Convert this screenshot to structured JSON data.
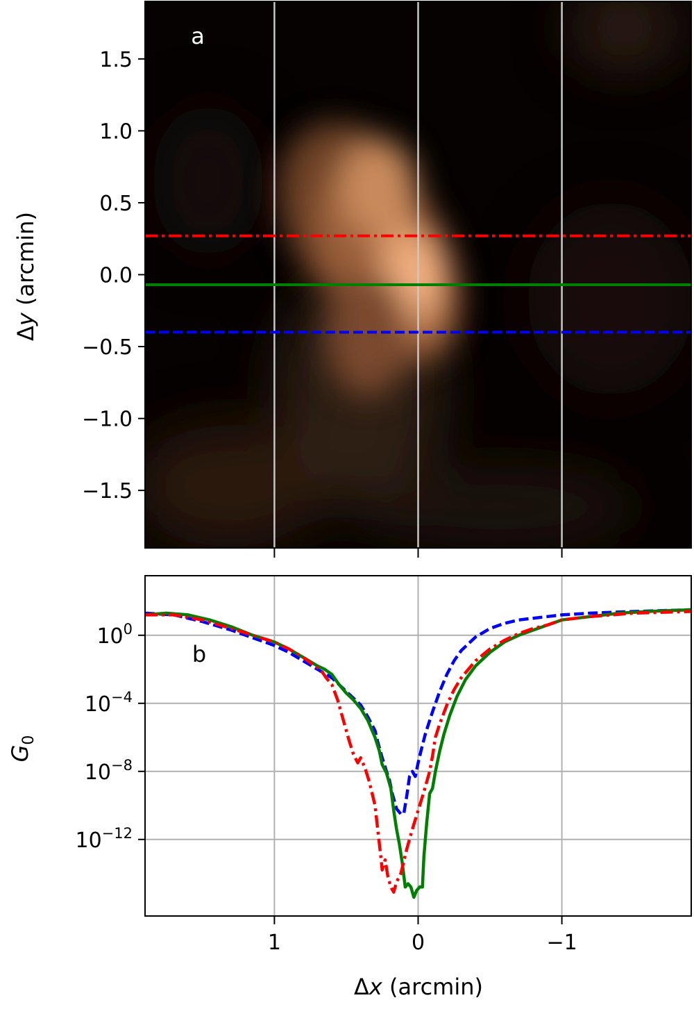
{
  "figure": {
    "background": "#ffffff",
    "grid_color": "#b0b0b0"
  },
  "chart_data": [
    {
      "type": "heatmap",
      "panel_label": "a",
      "panel_label_color": "#ffffff",
      "xlabel": "",
      "ylabel": "Δy (arcmin)",
      "ylabel_parts": {
        "sym": "Δ",
        "var": "y",
        "unit": " (arcmin)"
      },
      "xlim": [
        1.9,
        -1.9
      ],
      "ylim": [
        -1.9,
        1.9
      ],
      "yticks": [
        -1.5,
        -1.0,
        -0.5,
        0.0,
        0.5,
        1.0,
        1.5
      ],
      "ytick_labels": [
        "−1.5",
        "−1.0",
        "−0.5",
        "0.0",
        "0.5",
        "1.0",
        "1.5"
      ],
      "xticks": [
        1,
        0,
        -1
      ],
      "vertical_gridlines_x": [
        1,
        0,
        -1
      ],
      "colormap": "copper",
      "emission_peak": {
        "x": 0.0,
        "y": 0.0
      },
      "horizontal_cuts": [
        {
          "y": 0.27,
          "color": "#ff0000",
          "style": "dashdot"
        },
        {
          "y": -0.07,
          "color": "#008000",
          "style": "solid"
        },
        {
          "y": -0.4,
          "color": "#0000ff",
          "style": "dashed"
        }
      ]
    },
    {
      "type": "line",
      "panel_label": "b",
      "panel_label_color": "#000000",
      "xlabel": "Δx (arcmin)",
      "xlabel_parts": {
        "sym": "Δ",
        "var": "x",
        "unit": " (arcmin)"
      },
      "ylabel": "G0",
      "ylabel_parts": {
        "var": "G",
        "sub": "0"
      },
      "yscale": "log",
      "xlim": [
        1.9,
        -1.9
      ],
      "ylim_log10": [
        -16.5,
        3.5
      ],
      "xticks": [
        1,
        0,
        -1
      ],
      "xtick_labels": [
        "1",
        "0",
        "−1"
      ],
      "yticks_log10": [
        0,
        -4,
        -8,
        -12
      ],
      "ytick_labels": [
        {
          "base": "10",
          "exp": "0"
        },
        {
          "base": "10",
          "exp": "−4"
        },
        {
          "base": "10",
          "exp": "−8"
        },
        {
          "base": "10",
          "exp": "−12"
        }
      ],
      "grid": true,
      "series": [
        {
          "color": "#0000ff",
          "style": "dashed",
          "points_log10": [
            [
              1.9,
              1.3
            ],
            [
              1.7,
              1.2
            ],
            [
              1.5,
              0.8
            ],
            [
              1.3,
              0.3
            ],
            [
              1.1,
              -0.3
            ],
            [
              1.0,
              -0.6
            ],
            [
              0.9,
              -1.0
            ],
            [
              0.8,
              -1.5
            ],
            [
              0.7,
              -2.0
            ],
            [
              0.6,
              -2.5
            ],
            [
              0.5,
              -3.3
            ],
            [
              0.45,
              -3.7
            ],
            [
              0.4,
              -4.1
            ],
            [
              0.35,
              -4.8
            ],
            [
              0.3,
              -5.6
            ],
            [
              0.28,
              -6.3
            ],
            [
              0.25,
              -7.2
            ],
            [
              0.22,
              -8.0
            ],
            [
              0.2,
              -8.5
            ],
            [
              0.18,
              -9.3
            ],
            [
              0.15,
              -10.2
            ],
            [
              0.12,
              -10.5
            ],
            [
              0.1,
              -10.5
            ],
            [
              0.08,
              -9.5
            ],
            [
              0.06,
              -8.3
            ],
            [
              0.04,
              -8.0
            ],
            [
              0.02,
              -8.3
            ],
            [
              0.0,
              -7.5
            ],
            [
              -0.02,
              -6.8
            ],
            [
              -0.05,
              -5.8
            ],
            [
              -0.1,
              -4.5
            ],
            [
              -0.15,
              -3.3
            ],
            [
              -0.2,
              -2.3
            ],
            [
              -0.25,
              -1.5
            ],
            [
              -0.3,
              -0.9
            ],
            [
              -0.4,
              -0.1
            ],
            [
              -0.5,
              0.4
            ],
            [
              -0.6,
              0.7
            ],
            [
              -0.7,
              0.9
            ],
            [
              -0.9,
              1.1
            ],
            [
              -1.0,
              1.2
            ],
            [
              -1.2,
              1.3
            ],
            [
              -1.5,
              1.4
            ],
            [
              -1.9,
              1.5
            ]
          ]
        },
        {
          "color": "#008000",
          "style": "solid",
          "points_log10": [
            [
              1.9,
              1.2
            ],
            [
              1.75,
              1.3
            ],
            [
              1.6,
              1.2
            ],
            [
              1.45,
              0.9
            ],
            [
              1.3,
              0.5
            ],
            [
              1.15,
              0.0
            ],
            [
              1.0,
              -0.4
            ],
            [
              0.9,
              -0.8
            ],
            [
              0.8,
              -1.3
            ],
            [
              0.7,
              -1.8
            ],
            [
              0.65,
              -2.0
            ],
            [
              0.6,
              -2.3
            ],
            [
              0.55,
              -2.9
            ],
            [
              0.5,
              -3.4
            ],
            [
              0.45,
              -3.8
            ],
            [
              0.4,
              -4.3
            ],
            [
              0.35,
              -5.0
            ],
            [
              0.32,
              -5.6
            ],
            [
              0.3,
              -6.0
            ],
            [
              0.27,
              -6.8
            ],
            [
              0.25,
              -7.6
            ],
            [
              0.22,
              -8.1
            ],
            [
              0.19,
              -9.0
            ],
            [
              0.17,
              -10.3
            ],
            [
              0.15,
              -11.4
            ],
            [
              0.13,
              -12.3
            ],
            [
              0.11,
              -13.4
            ],
            [
              0.09,
              -14.8
            ],
            [
              0.07,
              -14.6
            ],
            [
              0.05,
              -14.8
            ],
            [
              0.03,
              -15.4
            ],
            [
              0.01,
              -15.0
            ],
            [
              -0.01,
              -14.8
            ],
            [
              -0.03,
              -14.8
            ],
            [
              -0.04,
              -13.0
            ],
            [
              -0.06,
              -11.0
            ],
            [
              -0.08,
              -9.3
            ],
            [
              -0.1,
              -9.0
            ],
            [
              -0.12,
              -8.0
            ],
            [
              -0.15,
              -6.8
            ],
            [
              -0.18,
              -5.8
            ],
            [
              -0.22,
              -4.7
            ],
            [
              -0.27,
              -3.6
            ],
            [
              -0.33,
              -2.6
            ],
            [
              -0.4,
              -1.8
            ],
            [
              -0.5,
              -1.0
            ],
            [
              -0.6,
              -0.4
            ],
            [
              -0.7,
              0.0
            ],
            [
              -0.8,
              0.3
            ],
            [
              -0.9,
              0.6
            ],
            [
              -1.0,
              0.9
            ],
            [
              -1.2,
              1.1
            ],
            [
              -1.4,
              1.3
            ],
            [
              -1.6,
              1.4
            ],
            [
              -1.9,
              1.5
            ]
          ]
        },
        {
          "color": "#ff0000",
          "style": "dashdot",
          "points_log10": [
            [
              1.9,
              1.2
            ],
            [
              1.7,
              1.2
            ],
            [
              1.5,
              0.9
            ],
            [
              1.3,
              0.4
            ],
            [
              1.15,
              0.0
            ],
            [
              1.0,
              -0.4
            ],
            [
              0.9,
              -0.8
            ],
            [
              0.8,
              -1.3
            ],
            [
              0.72,
              -1.8
            ],
            [
              0.68,
              -2.0
            ],
            [
              0.64,
              -2.5
            ],
            [
              0.6,
              -2.9
            ],
            [
              0.56,
              -3.8
            ],
            [
              0.52,
              -5.0
            ],
            [
              0.48,
              -6.2
            ],
            [
              0.45,
              -7.0
            ],
            [
              0.42,
              -7.5
            ],
            [
              0.4,
              -7.2
            ],
            [
              0.37,
              -7.8
            ],
            [
              0.34,
              -8.6
            ],
            [
              0.3,
              -10.0
            ],
            [
              0.28,
              -11.5
            ],
            [
              0.26,
              -13.0
            ],
            [
              0.25,
              -13.8
            ],
            [
              0.23,
              -13.2
            ],
            [
              0.21,
              -14.2
            ],
            [
              0.19,
              -14.8
            ],
            [
              0.17,
              -15.1
            ],
            [
              0.15,
              -14.5
            ],
            [
              0.12,
              -14.0
            ],
            [
              0.08,
              -12.6
            ],
            [
              0.04,
              -11.4
            ],
            [
              0.0,
              -10.3
            ],
            [
              -0.04,
              -9.2
            ],
            [
              -0.08,
              -8.0
            ],
            [
              -0.1,
              -7.1
            ],
            [
              -0.12,
              -6.0
            ],
            [
              -0.15,
              -5.2
            ],
            [
              -0.2,
              -4.1
            ],
            [
              -0.25,
              -3.2
            ],
            [
              -0.3,
              -2.5
            ],
            [
              -0.4,
              -1.5
            ],
            [
              -0.5,
              -0.8
            ],
            [
              -0.6,
              -0.3
            ],
            [
              -0.7,
              0.1
            ],
            [
              -0.8,
              0.4
            ],
            [
              -0.9,
              0.6
            ],
            [
              -1.0,
              0.9
            ],
            [
              -1.2,
              1.1
            ],
            [
              -1.5,
              1.3
            ],
            [
              -1.9,
              1.4
            ]
          ]
        }
      ]
    }
  ]
}
